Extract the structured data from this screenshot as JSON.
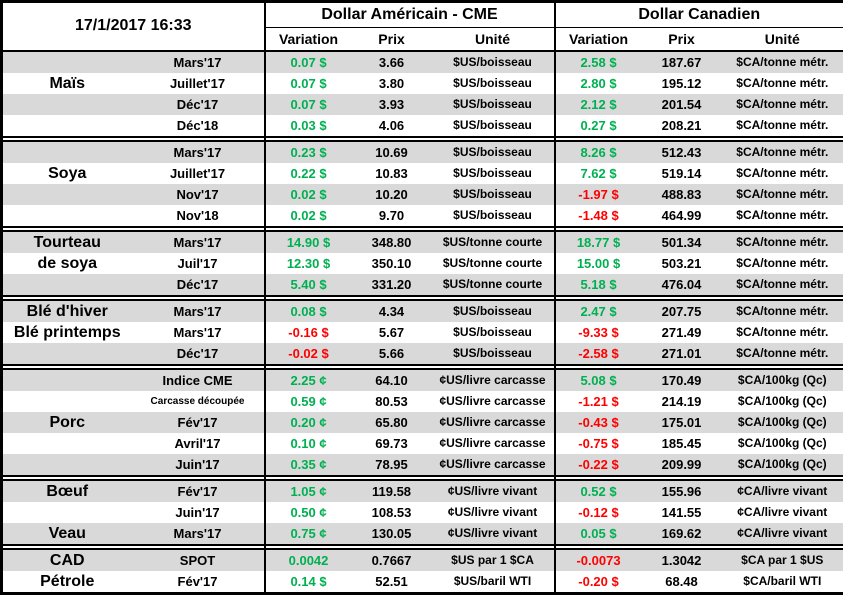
{
  "colors": {
    "positive": "#00b050",
    "negative": "#ff0000",
    "band": "#d9d9d9",
    "border": "#000000"
  },
  "chart_data": {
    "type": "table",
    "timestamp": "17/1/2017 16:33",
    "us_group_label": "Dollar Américain - CME",
    "ca_group_label": "Dollar Canadien",
    "sub_columns": [
      "Variation",
      "Prix",
      "Unité"
    ],
    "groups": [
      {
        "name": "Maïs",
        "rows": [
          {
            "label": "",
            "contract": "Mars'17",
            "us_variation": "0.07 $",
            "us_prix": "3.66",
            "us_unite": "$US/boisseau",
            "ca_variation": "2.58 $",
            "ca_prix": "187.67",
            "ca_unite": "$CA/tonne métr."
          },
          {
            "label": "Maïs",
            "contract": "Juillet'17",
            "us_variation": "0.07 $",
            "us_prix": "3.80",
            "us_unite": "$US/boisseau",
            "ca_variation": "2.80 $",
            "ca_prix": "195.12",
            "ca_unite": "$CA/tonne métr."
          },
          {
            "label": "",
            "contract": "Déc'17",
            "us_variation": "0.07 $",
            "us_prix": "3.93",
            "us_unite": "$US/boisseau",
            "ca_variation": "2.12 $",
            "ca_prix": "201.54",
            "ca_unite": "$CA/tonne métr."
          },
          {
            "label": "",
            "contract": "Déc'18",
            "us_variation": "0.03 $",
            "us_prix": "4.06",
            "us_unite": "$US/boisseau",
            "ca_variation": "0.27 $",
            "ca_prix": "208.21",
            "ca_unite": "$CA/tonne métr."
          }
        ]
      },
      {
        "name": "Soya",
        "rows": [
          {
            "label": "",
            "contract": "Mars'17",
            "us_variation": "0.23 $",
            "us_prix": "10.69",
            "us_unite": "$US/boisseau",
            "ca_variation": "8.26 $",
            "ca_prix": "512.43",
            "ca_unite": "$CA/tonne métr."
          },
          {
            "label": "Soya",
            "contract": "Juillet'17",
            "us_variation": "0.22 $",
            "us_prix": "10.83",
            "us_unite": "$US/boisseau",
            "ca_variation": "7.62 $",
            "ca_prix": "519.14",
            "ca_unite": "$CA/tonne métr."
          },
          {
            "label": "",
            "contract": "Nov'17",
            "us_variation": "0.02 $",
            "us_prix": "10.20",
            "us_unite": "$US/boisseau",
            "ca_variation": "-1.97 $",
            "ca_prix": "488.83",
            "ca_unite": "$CA/tonne métr."
          },
          {
            "label": "",
            "contract": "Nov'18",
            "us_variation": "0.02 $",
            "us_prix": "9.70",
            "us_unite": "$US/boisseau",
            "ca_variation": "-1.48 $",
            "ca_prix": "464.99",
            "ca_unite": "$CA/tonne métr."
          }
        ]
      },
      {
        "name": "Tourteau de soya",
        "rows": [
          {
            "label": "Tourteau",
            "contract": "Mars'17",
            "us_variation": "14.90 $",
            "us_prix": "348.80",
            "us_unite": "$US/tonne courte",
            "ca_variation": "18.77 $",
            "ca_prix": "501.34",
            "ca_unite": "$CA/tonne métr."
          },
          {
            "label": "de soya",
            "contract": "Juil'17",
            "us_variation": "12.30 $",
            "us_prix": "350.10",
            "us_unite": "$US/tonne courte",
            "ca_variation": "15.00 $",
            "ca_prix": "503.21",
            "ca_unite": "$CA/tonne métr."
          },
          {
            "label": "",
            "contract": "Déc'17",
            "us_variation": "5.40 $",
            "us_prix": "331.20",
            "us_unite": "$US/tonne courte",
            "ca_variation": "5.18 $",
            "ca_prix": "476.04",
            "ca_unite": "$CA/tonne métr."
          }
        ]
      },
      {
        "name": "Blé",
        "rows": [
          {
            "label": "Blé d'hiver",
            "contract": "Mars'17",
            "us_variation": "0.08 $",
            "us_prix": "4.34",
            "us_unite": "$US/boisseau",
            "ca_variation": "2.47 $",
            "ca_prix": "207.75",
            "ca_unite": "$CA/tonne métr."
          },
          {
            "label": "Blé printemps",
            "contract": "Mars'17",
            "us_variation": "-0.16 $",
            "us_prix": "5.67",
            "us_unite": "$US/boisseau",
            "ca_variation": "-9.33 $",
            "ca_prix": "271.49",
            "ca_unite": "$CA/tonne métr."
          },
          {
            "label": "",
            "contract": "Déc'17",
            "us_variation": "-0.02 $",
            "us_prix": "5.66",
            "us_unite": "$US/boisseau",
            "ca_variation": "-2.58 $",
            "ca_prix": "271.01",
            "ca_unite": "$CA/tonne métr."
          }
        ]
      },
      {
        "name": "Porc",
        "rows": [
          {
            "label": "",
            "contract": "Indice CME",
            "us_variation": "2.25 ¢",
            "us_prix": "64.10",
            "us_unite": "¢US/livre carcasse",
            "ca_variation": "5.08 $",
            "ca_prix": "170.49",
            "ca_unite": "$CA/100kg (Qc)"
          },
          {
            "label": "",
            "contract": "Carcasse découpée",
            "small": true,
            "us_variation": "0.59 ¢",
            "us_prix": "80.53",
            "us_unite": "¢US/livre carcasse",
            "ca_variation": "-1.21 $",
            "ca_prix": "214.19",
            "ca_unite": "$CA/100kg (Qc)"
          },
          {
            "label": "Porc",
            "contract": "Fév'17",
            "us_variation": "0.20 ¢",
            "us_prix": "65.80",
            "us_unite": "¢US/livre carcasse",
            "ca_variation": "-0.43 $",
            "ca_prix": "175.01",
            "ca_unite": "$CA/100kg (Qc)"
          },
          {
            "label": "",
            "contract": "Avril'17",
            "us_variation": "0.10 ¢",
            "us_prix": "69.73",
            "us_unite": "¢US/livre carcasse",
            "ca_variation": "-0.75 $",
            "ca_prix": "185.45",
            "ca_unite": "$CA/100kg (Qc)"
          },
          {
            "label": "",
            "contract": "Juin'17",
            "us_variation": "0.35 ¢",
            "us_prix": "78.95",
            "us_unite": "¢US/livre carcasse",
            "ca_variation": "-0.22 $",
            "ca_prix": "209.99",
            "ca_unite": "$CA/100kg (Qc)"
          }
        ]
      },
      {
        "name": "Bœuf / Veau",
        "rows": [
          {
            "label": "Bœuf",
            "contract": "Fév'17",
            "us_variation": "1.05 ¢",
            "us_prix": "119.58",
            "us_unite": "¢US/livre vivant",
            "ca_variation": "0.52 $",
            "ca_prix": "155.96",
            "ca_unite": "¢CA/livre vivant"
          },
          {
            "label": "",
            "contract": "Juin'17",
            "us_variation": "0.50 ¢",
            "us_prix": "108.53",
            "us_unite": "¢US/livre vivant",
            "ca_variation": "-0.12 $",
            "ca_prix": "141.55",
            "ca_unite": "¢CA/livre vivant"
          },
          {
            "label": "Veau",
            "contract": "Mars'17",
            "us_variation": "0.75 ¢",
            "us_prix": "130.05",
            "us_unite": "¢US/livre vivant",
            "ca_variation": "0.05 $",
            "ca_prix": "169.62",
            "ca_unite": "¢CA/livre vivant"
          }
        ]
      },
      {
        "name": "CAD / Pétrole",
        "rows": [
          {
            "label": "CAD",
            "contract": "SPOT",
            "us_variation": "0.0042",
            "us_prix": "0.7667",
            "us_unite": "$US par 1 $CA",
            "ca_variation": "-0.0073",
            "ca_prix": "1.3042",
            "ca_unite": "$CA par 1 $US"
          },
          {
            "label": "Pétrole",
            "contract": "Fév'17",
            "us_variation": "0.14 $",
            "us_prix": "52.51",
            "us_unite": "$US/baril WTI",
            "ca_variation": "-0.20 $",
            "ca_prix": "68.48",
            "ca_unite": "$CA/baril WTI"
          }
        ]
      }
    ]
  }
}
